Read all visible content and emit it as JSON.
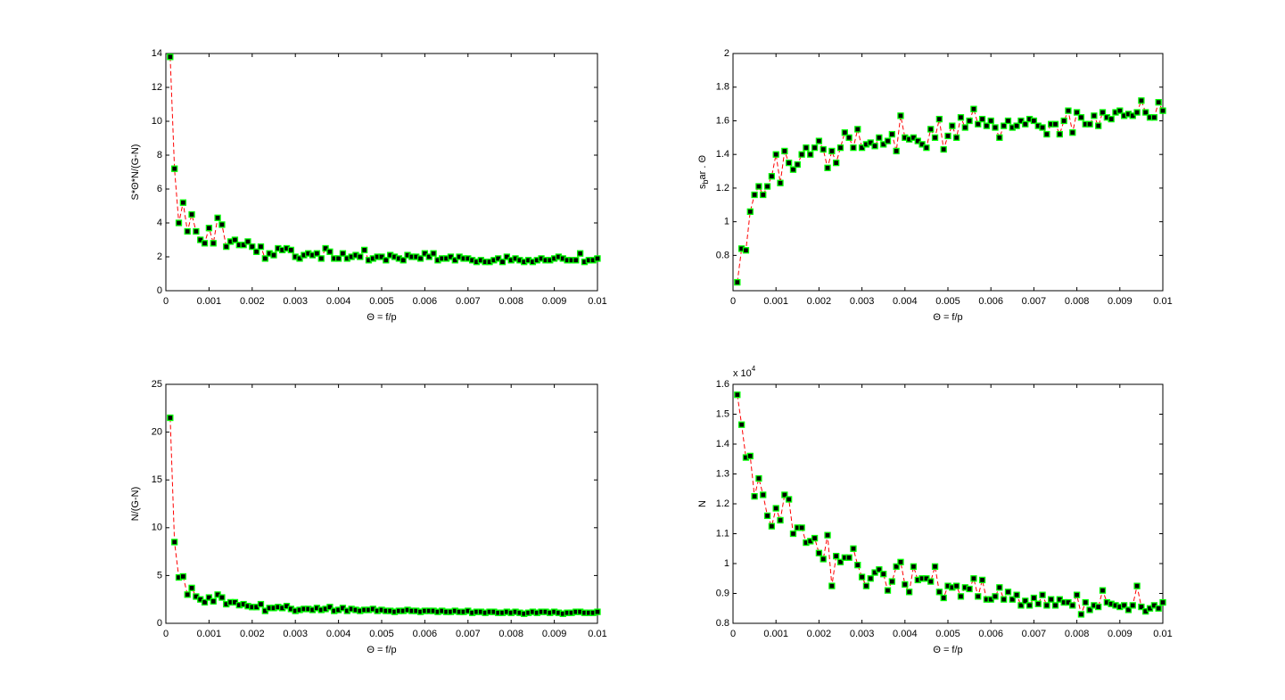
{
  "chart_data": [
    {
      "type": "line",
      "xlabel": "Θ = f/p",
      "ylabel": "S*Θ*N/(G-N)",
      "xlim": [
        0,
        0.01
      ],
      "xticks": [
        0,
        0.001,
        0.002,
        0.003,
        0.004,
        0.005,
        0.006,
        0.007,
        0.008,
        0.009,
        0.01
      ],
      "ylim": [
        0,
        14
      ],
      "yticks": [
        0,
        2,
        4,
        6,
        8,
        10,
        12,
        14
      ],
      "line_color": "#ff0000",
      "marker_face": "#000000",
      "marker_edge": "#00ff00",
      "x": [
        0.0001,
        0.0002,
        0.0003,
        0.0004,
        0.0005,
        0.0006,
        0.0007,
        0.0008,
        0.0009,
        0.001,
        0.0011,
        0.0012,
        0.0013,
        0.0014,
        0.0015,
        0.0016,
        0.0017,
        0.0018,
        0.0019,
        0.002,
        0.0021,
        0.0022,
        0.0023,
        0.0024,
        0.0025,
        0.0026,
        0.0027,
        0.0028,
        0.0029,
        0.003,
        0.0031,
        0.0032,
        0.0033,
        0.0034,
        0.0035,
        0.0036,
        0.0037,
        0.0038,
        0.0039,
        0.004,
        0.0041,
        0.0042,
        0.0043,
        0.0044,
        0.0045,
        0.0046,
        0.0047,
        0.0048,
        0.0049,
        0.005,
        0.0051,
        0.0052,
        0.0053,
        0.0054,
        0.0055,
        0.0056,
        0.0057,
        0.0058,
        0.0059,
        0.006,
        0.0061,
        0.0062,
        0.0063,
        0.0064,
        0.0065,
        0.0066,
        0.0067,
        0.0068,
        0.0069,
        0.007,
        0.0071,
        0.0072,
        0.0073,
        0.0074,
        0.0075,
        0.0076,
        0.0077,
        0.0078,
        0.0079,
        0.008,
        0.0081,
        0.0082,
        0.0083,
        0.0084,
        0.0085,
        0.0086,
        0.0087,
        0.0088,
        0.0089,
        0.009,
        0.0091,
        0.0092,
        0.0093,
        0.0094,
        0.0095,
        0.0096,
        0.0097,
        0.0098,
        0.0099,
        0.01
      ],
      "values": [
        13.8,
        7.2,
        4.0,
        5.2,
        3.5,
        4.5,
        3.5,
        3.0,
        2.8,
        3.7,
        2.8,
        4.3,
        3.9,
        2.6,
        2.9,
        3.0,
        2.7,
        2.7,
        2.9,
        2.6,
        2.3,
        2.6,
        1.9,
        2.2,
        2.1,
        2.5,
        2.4,
        2.5,
        2.4,
        2.0,
        1.9,
        2.1,
        2.2,
        2.1,
        2.2,
        1.9,
        2.5,
        2.3,
        1.9,
        1.9,
        2.2,
        1.9,
        2.0,
        2.1,
        2.0,
        2.4,
        1.8,
        1.9,
        2.0,
        2.0,
        1.8,
        2.1,
        2.0,
        1.9,
        1.8,
        2.1,
        2.0,
        2.0,
        1.9,
        2.2,
        2.0,
        2.2,
        1.8,
        1.9,
        1.9,
        2.0,
        1.8,
        2.0,
        1.9,
        1.9,
        1.8,
        1.7,
        1.8,
        1.7,
        1.7,
        1.8,
        1.9,
        1.7,
        2.0,
        1.8,
        1.9,
        1.8,
        1.7,
        1.8,
        1.7,
        1.8,
        1.9,
        1.8,
        1.8,
        1.9,
        2.0,
        1.9,
        1.8,
        1.8,
        1.8,
        2.2,
        1.7,
        1.8,
        1.8,
        1.9
      ]
    },
    {
      "type": "line",
      "xlabel": "Θ = f/p",
      "ylabel": "s_bar . Θ",
      "xlim": [
        0,
        0.01
      ],
      "xticks": [
        0,
        0.001,
        0.002,
        0.003,
        0.004,
        0.005,
        0.006,
        0.007,
        0.008,
        0.009,
        0.01
      ],
      "ylim": [
        0.59,
        2
      ],
      "yticks": [
        0.8,
        1,
        1.2,
        1.4,
        1.6,
        1.8,
        2
      ],
      "line_color": "#ff0000",
      "marker_face": "#000000",
      "marker_edge": "#00ff00",
      "x": [
        0.0001,
        0.0002,
        0.0003,
        0.0004,
        0.0005,
        0.0006,
        0.0007,
        0.0008,
        0.0009,
        0.001,
        0.0011,
        0.0012,
        0.0013,
        0.0014,
        0.0015,
        0.0016,
        0.0017,
        0.0018,
        0.0019,
        0.002,
        0.0021,
        0.0022,
        0.0023,
        0.0024,
        0.0025,
        0.0026,
        0.0027,
        0.0028,
        0.0029,
        0.003,
        0.0031,
        0.0032,
        0.0033,
        0.0034,
        0.0035,
        0.0036,
        0.0037,
        0.0038,
        0.0039,
        0.004,
        0.0041,
        0.0042,
        0.0043,
        0.0044,
        0.0045,
        0.0046,
        0.0047,
        0.0048,
        0.0049,
        0.005,
        0.0051,
        0.0052,
        0.0053,
        0.0054,
        0.0055,
        0.0056,
        0.0057,
        0.0058,
        0.0059,
        0.006,
        0.0061,
        0.0062,
        0.0063,
        0.0064,
        0.0065,
        0.0066,
        0.0067,
        0.0068,
        0.0069,
        0.007,
        0.0071,
        0.0072,
        0.0073,
        0.0074,
        0.0075,
        0.0076,
        0.0077,
        0.0078,
        0.0079,
        0.008,
        0.0081,
        0.0082,
        0.0083,
        0.0084,
        0.0085,
        0.0086,
        0.0087,
        0.0088,
        0.0089,
        0.009,
        0.0091,
        0.0092,
        0.0093,
        0.0094,
        0.0095,
        0.0096,
        0.0097,
        0.0098,
        0.0099,
        0.01
      ],
      "values": [
        0.64,
        0.84,
        0.83,
        1.06,
        1.16,
        1.21,
        1.16,
        1.21,
        1.27,
        1.4,
        1.23,
        1.42,
        1.35,
        1.31,
        1.34,
        1.4,
        1.44,
        1.4,
        1.44,
        1.48,
        1.43,
        1.32,
        1.42,
        1.35,
        1.44,
        1.53,
        1.5,
        1.44,
        1.55,
        1.44,
        1.46,
        1.47,
        1.45,
        1.5,
        1.46,
        1.48,
        1.52,
        1.42,
        1.63,
        1.5,
        1.49,
        1.5,
        1.48,
        1.46,
        1.44,
        1.55,
        1.5,
        1.61,
        1.43,
        1.51,
        1.57,
        1.5,
        1.62,
        1.56,
        1.6,
        1.67,
        1.58,
        1.61,
        1.57,
        1.6,
        1.56,
        1.5,
        1.57,
        1.6,
        1.56,
        1.57,
        1.6,
        1.58,
        1.61,
        1.6,
        1.57,
        1.56,
        1.52,
        1.58,
        1.58,
        1.52,
        1.6,
        1.66,
        1.53,
        1.65,
        1.62,
        1.58,
        1.58,
        1.63,
        1.57,
        1.65,
        1.62,
        1.61,
        1.65,
        1.66,
        1.63,
        1.64,
        1.63,
        1.65,
        1.72,
        1.65,
        1.62,
        1.62,
        1.71,
        1.66
      ]
    },
    {
      "type": "line",
      "xlabel": "Θ = f/p",
      "ylabel": "N/(G-N)",
      "xlim": [
        0,
        0.01
      ],
      "xticks": [
        0,
        0.001,
        0.002,
        0.003,
        0.004,
        0.005,
        0.006,
        0.007,
        0.008,
        0.009,
        0.01
      ],
      "ylim": [
        0,
        25
      ],
      "yticks": [
        0,
        5,
        10,
        15,
        20,
        25
      ],
      "line_color": "#ff0000",
      "marker_face": "#000000",
      "marker_edge": "#00ff00",
      "x": [
        0.0001,
        0.0002,
        0.0003,
        0.0004,
        0.0005,
        0.0006,
        0.0007,
        0.0008,
        0.0009,
        0.001,
        0.0011,
        0.0012,
        0.0013,
        0.0014,
        0.0015,
        0.0016,
        0.0017,
        0.0018,
        0.0019,
        0.002,
        0.0021,
        0.0022,
        0.0023,
        0.0024,
        0.0025,
        0.0026,
        0.0027,
        0.0028,
        0.0029,
        0.003,
        0.0031,
        0.0032,
        0.0033,
        0.0034,
        0.0035,
        0.0036,
        0.0037,
        0.0038,
        0.0039,
        0.004,
        0.0041,
        0.0042,
        0.0043,
        0.0044,
        0.0045,
        0.0046,
        0.0047,
        0.0048,
        0.0049,
        0.005,
        0.0051,
        0.0052,
        0.0053,
        0.0054,
        0.0055,
        0.0056,
        0.0057,
        0.0058,
        0.0059,
        0.006,
        0.0061,
        0.0062,
        0.0063,
        0.0064,
        0.0065,
        0.0066,
        0.0067,
        0.0068,
        0.0069,
        0.007,
        0.0071,
        0.0072,
        0.0073,
        0.0074,
        0.0075,
        0.0076,
        0.0077,
        0.0078,
        0.0079,
        0.008,
        0.0081,
        0.0082,
        0.0083,
        0.0084,
        0.0085,
        0.0086,
        0.0087,
        0.0088,
        0.0089,
        0.009,
        0.0091,
        0.0092,
        0.0093,
        0.0094,
        0.0095,
        0.0096,
        0.0097,
        0.0098,
        0.0099,
        0.01
      ],
      "values": [
        21.5,
        8.5,
        4.8,
        4.9,
        3.0,
        3.7,
        2.8,
        2.5,
        2.2,
        2.7,
        2.3,
        3.0,
        2.7,
        2.0,
        2.2,
        2.2,
        1.9,
        2.0,
        1.8,
        1.7,
        1.7,
        2.0,
        1.3,
        1.6,
        1.6,
        1.7,
        1.6,
        1.8,
        1.5,
        1.3,
        1.4,
        1.5,
        1.5,
        1.4,
        1.6,
        1.4,
        1.5,
        1.7,
        1.3,
        1.4,
        1.6,
        1.3,
        1.5,
        1.4,
        1.3,
        1.4,
        1.4,
        1.5,
        1.3,
        1.4,
        1.3,
        1.3,
        1.2,
        1.3,
        1.3,
        1.4,
        1.3,
        1.3,
        1.2,
        1.3,
        1.3,
        1.3,
        1.2,
        1.3,
        1.2,
        1.2,
        1.3,
        1.2,
        1.2,
        1.3,
        1.1,
        1.2,
        1.2,
        1.1,
        1.2,
        1.2,
        1.1,
        1.1,
        1.2,
        1.1,
        1.2,
        1.1,
        1.0,
        1.1,
        1.2,
        1.1,
        1.2,
        1.2,
        1.1,
        1.2,
        1.1,
        1.0,
        1.1,
        1.1,
        1.2,
        1.2,
        1.1,
        1.1,
        1.1,
        1.2
      ]
    },
    {
      "type": "line",
      "xlabel": "Θ = f/p",
      "ylabel": "N",
      "y_multiplier": "x 10^4",
      "xlim": [
        0,
        0.01
      ],
      "xticks": [
        0,
        0.001,
        0.002,
        0.003,
        0.004,
        0.005,
        0.006,
        0.007,
        0.008,
        0.009,
        0.01
      ],
      "ylim": [
        8000,
        16000
      ],
      "yticks": [
        {
          "value": 8000,
          "label": "0.8"
        },
        {
          "value": 9000,
          "label": "0.9"
        },
        {
          "value": 10000,
          "label": "1"
        },
        {
          "value": 11000,
          "label": "1.1"
        },
        {
          "value": 12000,
          "label": "1.2"
        },
        {
          "value": 13000,
          "label": "1.3"
        },
        {
          "value": 14000,
          "label": "1.4"
        },
        {
          "value": 15000,
          "label": "1.5"
        },
        {
          "value": 16000,
          "label": "1.6"
        }
      ],
      "line_color": "#ff0000",
      "marker_face": "#000000",
      "marker_edge": "#00ff00",
      "x": [
        0.0001,
        0.0002,
        0.0003,
        0.0004,
        0.0005,
        0.0006,
        0.0007,
        0.0008,
        0.0009,
        0.001,
        0.0011,
        0.0012,
        0.0013,
        0.0014,
        0.0015,
        0.0016,
        0.0017,
        0.0018,
        0.0019,
        0.002,
        0.0021,
        0.0022,
        0.0023,
        0.0024,
        0.0025,
        0.0026,
        0.0027,
        0.0028,
        0.0029,
        0.003,
        0.0031,
        0.0032,
        0.0033,
        0.0034,
        0.0035,
        0.0036,
        0.0037,
        0.0038,
        0.0039,
        0.004,
        0.0041,
        0.0042,
        0.0043,
        0.0044,
        0.0045,
        0.0046,
        0.0047,
        0.0048,
        0.0049,
        0.005,
        0.0051,
        0.0052,
        0.0053,
        0.0054,
        0.0055,
        0.0056,
        0.0057,
        0.0058,
        0.0059,
        0.006,
        0.0061,
        0.0062,
        0.0063,
        0.0064,
        0.0065,
        0.0066,
        0.0067,
        0.0068,
        0.0069,
        0.007,
        0.0071,
        0.0072,
        0.0073,
        0.0074,
        0.0075,
        0.0076,
        0.0077,
        0.0078,
        0.0079,
        0.008,
        0.0081,
        0.0082,
        0.0083,
        0.0084,
        0.0085,
        0.0086,
        0.0087,
        0.0088,
        0.0089,
        0.009,
        0.0091,
        0.0092,
        0.0093,
        0.0094,
        0.0095,
        0.0096,
        0.0097,
        0.0098,
        0.0099,
        0.01
      ],
      "values": [
        15650,
        14650,
        13550,
        13600,
        12250,
        12850,
        12300,
        11600,
        11250,
        11850,
        11450,
        12300,
        12150,
        11000,
        11200,
        11200,
        10700,
        10750,
        10850,
        10350,
        10150,
        10950,
        9250,
        10250,
        10050,
        10200,
        10200,
        10500,
        9950,
        9550,
        9250,
        9500,
        9700,
        9800,
        9650,
        9100,
        9400,
        9900,
        10050,
        9300,
        9050,
        9900,
        9450,
        9500,
        9500,
        9400,
        9900,
        9050,
        8850,
        9250,
        9200,
        9250,
        8900,
        9200,
        9150,
        9500,
        8900,
        9450,
        8800,
        8800,
        8900,
        9200,
        8800,
        9050,
        8800,
        8950,
        8600,
        8750,
        8600,
        8850,
        8650,
        8950,
        8600,
        8800,
        8600,
        8800,
        8700,
        8700,
        8600,
        8950,
        8300,
        8700,
        8450,
        8600,
        8550,
        9100,
        8700,
        8650,
        8600,
        8550,
        8600,
        8450,
        8600,
        9250,
        8550,
        8400,
        8500,
        8600,
        8500,
        8700
      ]
    }
  ]
}
